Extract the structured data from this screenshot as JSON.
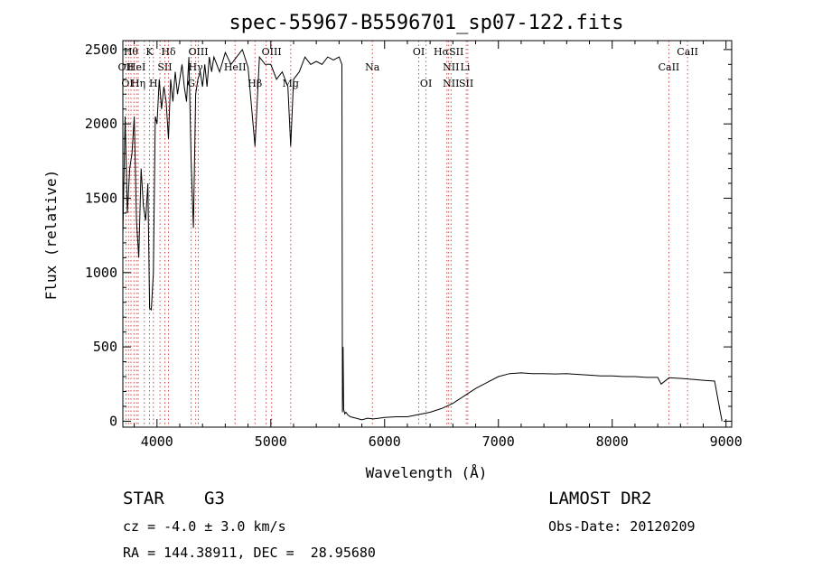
{
  "chart_data": {
    "type": "line",
    "title": "spec-55967-B5596701_sp07-122.fits",
    "xlabel": "Wavelength (Å)",
    "ylabel": "Flux (relative)",
    "xlim": [
      3700,
      9050
    ],
    "ylim": [
      -40,
      2560
    ],
    "xticks": [
      4000,
      5000,
      6000,
      7000,
      8000,
      9000
    ],
    "yticks": [
      0,
      500,
      1000,
      1500,
      2000,
      2500
    ],
    "grid": false,
    "series": [
      {
        "x": [
          3700,
          3720,
          3740,
          3760,
          3780,
          3800,
          3820,
          3840,
          3860,
          3880,
          3900,
          3920,
          3935,
          3950,
          3968,
          3985,
          4000,
          4020,
          4040,
          4060,
          4080,
          4101,
          4120,
          4140,
          4160,
          4180,
          4200,
          4220,
          4240,
          4260,
          4280,
          4300,
          4320,
          4340,
          4360,
          4380,
          4400,
          4420,
          4440,
          4460,
          4480,
          4500,
          4550,
          4600,
          4650,
          4700,
          4750,
          4800,
          4861,
          4900,
          4950,
          5000,
          5050,
          5100,
          5150,
          5175,
          5200,
          5250,
          5300,
          5350,
          5400,
          5450,
          5500,
          5550,
          5600,
          5625,
          5630,
          5635,
          5640,
          5650,
          5660,
          5680,
          5700,
          5750,
          5800,
          5850,
          5900,
          5950,
          6000,
          6100,
          6200,
          6300,
          6400,
          6500,
          6600,
          6700,
          6800,
          6900,
          7000,
          7100,
          7200,
          7300,
          7400,
          7500,
          7600,
          7700,
          7800,
          7900,
          8000,
          8100,
          8200,
          8300,
          8400,
          8430,
          8500,
          8600,
          8700,
          8800,
          8900,
          8950,
          8960,
          8965
        ],
        "y": [
          1250,
          2050,
          1400,
          1700,
          1800,
          2050,
          1350,
          1100,
          1700,
          1450,
          1350,
          1600,
          760,
          750,
          1000,
          2050,
          2000,
          2300,
          2100,
          2250,
          2150,
          1900,
          2300,
          2150,
          2350,
          2200,
          2300,
          2400,
          2250,
          2150,
          2450,
          1750,
          1300,
          2200,
          2300,
          2350,
          2250,
          2400,
          2250,
          2450,
          2350,
          2450,
          2350,
          2480,
          2400,
          2450,
          2500,
          2380,
          1850,
          2450,
          2400,
          2400,
          2300,
          2350,
          2250,
          1850,
          2300,
          2350,
          2450,
          2400,
          2420,
          2400,
          2450,
          2430,
          2450,
          2400,
          60,
          500,
          80,
          50,
          60,
          40,
          30,
          20,
          10,
          20,
          15,
          20,
          25,
          30,
          30,
          45,
          60,
          85,
          120,
          170,
          220,
          260,
          300,
          320,
          325,
          320,
          320,
          318,
          320,
          315,
          310,
          305,
          305,
          300,
          300,
          295,
          295,
          250,
          292,
          288,
          282,
          275,
          270,
          60,
          20,
          0
        ]
      }
    ],
    "annotations": {
      "row1": [
        "Hθ",
        "K",
        "Hδ",
        "OIII",
        "OIII",
        "OI",
        "HαSII",
        "CaII"
      ],
      "row2": [
        "OII",
        "HeI",
        "SII",
        "Hγ",
        "HeII",
        "Na",
        "NII",
        "Li",
        "CaII"
      ],
      "row3": [
        "OI",
        "Hη",
        "H",
        "G",
        "Hβ",
        "Mg",
        "OI",
        "NII",
        "SII"
      ]
    }
  },
  "info": {
    "object_class": "STAR",
    "subclass": "G3",
    "redshift_text": "cz = -4.0 ± 3.0 km/s",
    "coords_text": "RA = 144.38911, DEC =  28.95680",
    "survey": "LAMOST DR2",
    "obs_date": "Obs-Date: 20120209"
  }
}
